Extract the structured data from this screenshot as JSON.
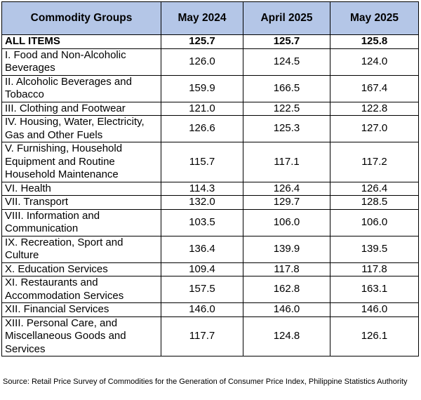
{
  "table": {
    "header": [
      "Commodity Groups",
      "May 2024",
      "April 2025",
      "May 2025"
    ],
    "rows": [
      [
        "ALL ITEMS",
        "125.7",
        "125.7",
        "125.8"
      ],
      [
        "I. Food and Non-Alcoholic Beverages",
        "126.0",
        "124.5",
        "124.0"
      ],
      [
        "II. Alcoholic Beverages and Tobacco",
        "159.9",
        "166.5",
        "167.4"
      ],
      [
        "III. Clothing and Footwear",
        "121.0",
        "122.5",
        "122.8"
      ],
      [
        "IV. Housing, Water, Electricity, Gas and Other Fuels",
        "126.6",
        "125.3",
        "127.0"
      ],
      [
        "V. Furnishing, Household Equipment and Routine Household Maintenance",
        "115.7",
        "117.1",
        "117.2"
      ],
      [
        "VI. Health",
        "114.3",
        "126.4",
        "126.4"
      ],
      [
        "VII. Transport",
        "132.0",
        "129.7",
        "128.5"
      ],
      [
        "VIII. Information and Communication",
        "103.5",
        "106.0",
        "106.0"
      ],
      [
        "IX. Recreation, Sport and Culture",
        "136.4",
        "139.9",
        "139.5"
      ],
      [
        "X. Education Services",
        "109.4",
        "117.8",
        "117.8"
      ],
      [
        "XI. Restaurants and Accommodation Services",
        "157.5",
        "162.8",
        "163.1"
      ],
      [
        "XII. Financial Services",
        "146.0",
        "146.0",
        "146.0"
      ],
      [
        "XIII. Personal Care, and Miscellaneous Goods and Services",
        "117.7",
        "124.8",
        "126.1"
      ]
    ]
  },
  "source": "Source: Retail Price Survey of Commodities for the Generation of Consumer Price Index, Philippine Statistics Authority"
}
